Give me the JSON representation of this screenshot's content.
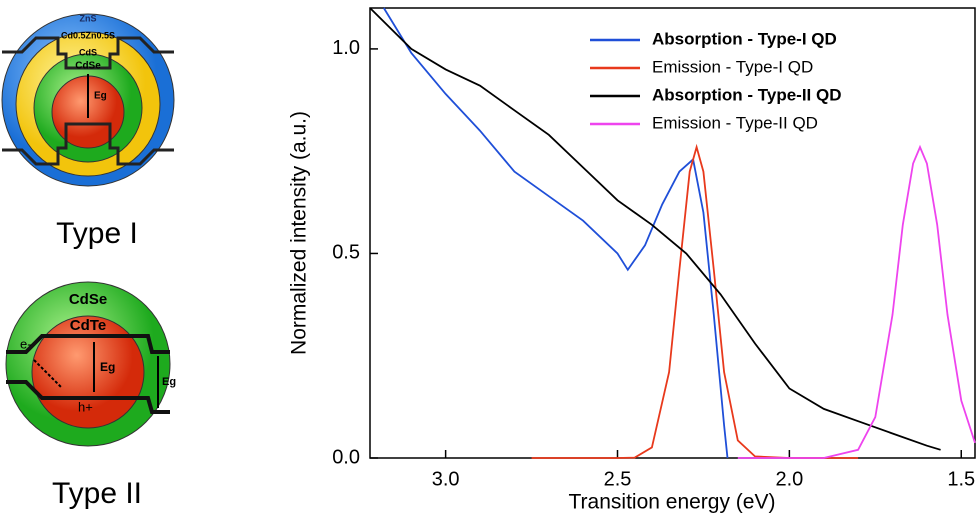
{
  "diagrams": {
    "type_1": {
      "shells": [
        "ZnS",
        "Cd0.5Zn0.5S",
        "CdS",
        "CdSe"
      ],
      "gap": "Eg",
      "caption": "Type I"
    },
    "type_2": {
      "shell": "CdSe",
      "core": "CdTe",
      "electron": "e-",
      "hole": "h+",
      "gap_core": "Eg",
      "gap_shell": "Eg",
      "caption": "Type II"
    }
  },
  "chart_data": {
    "type": "line",
    "xlabel": "Transition energy (eV)",
    "ylabel": "Normalized intensity (a.u.)",
    "xlim": [
      3.22,
      1.46
    ],
    "ylim": [
      0,
      1.1
    ],
    "xticks": [
      {
        "value": 3,
        "label": "3.0"
      },
      2.5,
      {
        "value": 2,
        "label": "2.0"
      },
      1.5
    ],
    "yticks": [
      {
        "value": 0,
        "label": "0.0"
      },
      0.5,
      {
        "value": 1,
        "label": "1.0"
      }
    ],
    "legend": "upper right",
    "series": [
      {
        "name": "Absorption - Type-I QD",
        "color": "#1f4fd8",
        "x": [
          3.18,
          3.1,
          3.0,
          2.9,
          2.8,
          2.7,
          2.6,
          2.5,
          2.47,
          2.42,
          2.37,
          2.32,
          2.28,
          2.25,
          2.22,
          2.19,
          2.18
        ],
        "values": [
          1.1,
          0.99,
          0.89,
          0.8,
          0.7,
          0.64,
          0.58,
          0.5,
          0.46,
          0.52,
          0.62,
          0.7,
          0.73,
          0.6,
          0.35,
          0.08,
          0
        ]
      },
      {
        "name": "Emission - Type-I QD",
        "color": "#e8391c",
        "x": [
          2.75,
          2.5,
          2.45,
          2.4,
          2.35,
          2.32,
          2.29,
          2.27,
          2.25,
          2.22,
          2.19,
          2.15,
          2.1,
          2.0,
          1.8
        ],
        "values": [
          0,
          0,
          0.001,
          0.026,
          0.21,
          0.46,
          0.7,
          0.76,
          0.7,
          0.46,
          0.21,
          0.043,
          0.004,
          0,
          0
        ]
      },
      {
        "name": "Absorption - Type-II QD",
        "color": "#000000",
        "x": [
          3.22,
          3.1,
          3.0,
          2.9,
          2.8,
          2.7,
          2.6,
          2.5,
          2.4,
          2.3,
          2.2,
          2.1,
          2.0,
          1.9,
          1.8,
          1.7,
          1.6,
          1.56
        ],
        "values": [
          1.1,
          1.0,
          0.95,
          0.91,
          0.85,
          0.79,
          0.71,
          0.63,
          0.57,
          0.5,
          0.4,
          0.28,
          0.17,
          0.12,
          0.09,
          0.06,
          0.03,
          0.02
        ]
      },
      {
        "name": "Emission - Type-II QD",
        "color": "#ee44ee",
        "x": [
          2.15,
          1.9,
          1.8,
          1.75,
          1.7,
          1.67,
          1.64,
          1.62,
          1.6,
          1.57,
          1.54,
          1.5,
          1.46
        ],
        "values": [
          0,
          0,
          0.02,
          0.1,
          0.35,
          0.57,
          0.72,
          0.76,
          0.72,
          0.57,
          0.35,
          0.14,
          0.037
        ]
      }
    ]
  }
}
